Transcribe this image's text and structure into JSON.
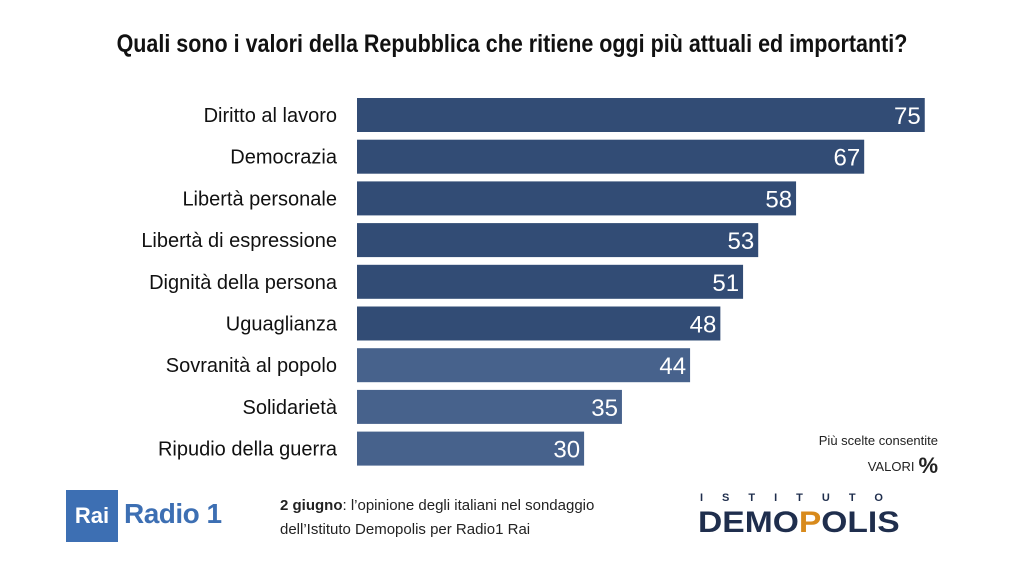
{
  "chart_data": {
    "type": "bar",
    "orientation": "horizontal",
    "title": "Quali sono i valori della Repubblica che ritiene oggi più attuali ed importanti?",
    "categories": [
      "Diritto al lavoro",
      "Democrazia",
      "Libertà personale",
      "Libertà di espressione",
      "Dignità della persona",
      "Uguaglianza",
      "Sovranità al popolo",
      "Solidarietà",
      "Ripudio della guerra"
    ],
    "values": [
      75,
      67,
      58,
      53,
      51,
      48,
      44,
      35,
      30
    ],
    "xlim": [
      0,
      100
    ],
    "data_labels": true,
    "grid": false,
    "colors": {
      "bar_dark": "#324c75",
      "bar_light": "#47628c"
    }
  },
  "note": {
    "line1": "Più scelte consentite",
    "line2": "VALORI",
    "unit": "%"
  },
  "footer": {
    "date": "2 giugno",
    "text_rest": ": l’opinione degli italiani nel sondaggio",
    "line2": "dell’Istituto Demopolis per Radio1 Rai"
  },
  "logos": {
    "rai": "Rai",
    "radio1": "Radio 1",
    "istituto": "ISTITUTO",
    "demopolis": "DEMOPOLIS"
  }
}
